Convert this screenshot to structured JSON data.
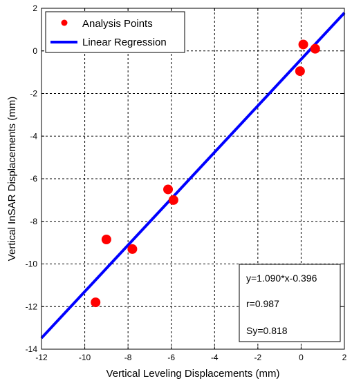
{
  "chart_data": {
    "type": "scatter",
    "title": "",
    "xlabel": "Vertical Leveling Displacements (mm)",
    "ylabel": "Vertical InSAR Displacements (mm)",
    "xlim": [
      -12,
      2
    ],
    "ylim": [
      -14,
      2
    ],
    "x_ticks": [
      -12,
      -10,
      -8,
      -6,
      -4,
      -2,
      0,
      2
    ],
    "y_ticks": [
      -14,
      -12,
      -10,
      -8,
      -6,
      -4,
      -2,
      0,
      2
    ],
    "x_tick_labels": [
      "-12",
      "-10",
      "-8",
      "-6",
      "-4",
      "-2",
      "0",
      "2"
    ],
    "y_tick_labels": [
      "-14",
      "-12",
      "-10",
      "-8",
      "-6",
      "-4",
      "-2",
      "0",
      "2"
    ],
    "grid": true,
    "legend_position": "top-left",
    "series": [
      {
        "name": "Analysis Points",
        "kind": "scatter",
        "color": "#ff0000",
        "points": [
          {
            "x": 0.1,
            "y": 0.3
          },
          {
            "x": 0.65,
            "y": 0.1
          },
          {
            "x": -0.05,
            "y": -0.95
          },
          {
            "x": -6.15,
            "y": -6.5
          },
          {
            "x": -5.9,
            "y": -7.0
          },
          {
            "x": -9.0,
            "y": -8.85
          },
          {
            "x": -7.8,
            "y": -9.3
          },
          {
            "x": -9.5,
            "y": -11.8
          }
        ]
      },
      {
        "name": "Linear Regression",
        "kind": "line",
        "color": "#0000ff",
        "slope": 1.09,
        "intercept": -0.396
      }
    ],
    "stats": {
      "equation": "y=1.090*x-0.396",
      "r": "r=0.987",
      "sy": "Sy=0.818"
    }
  }
}
